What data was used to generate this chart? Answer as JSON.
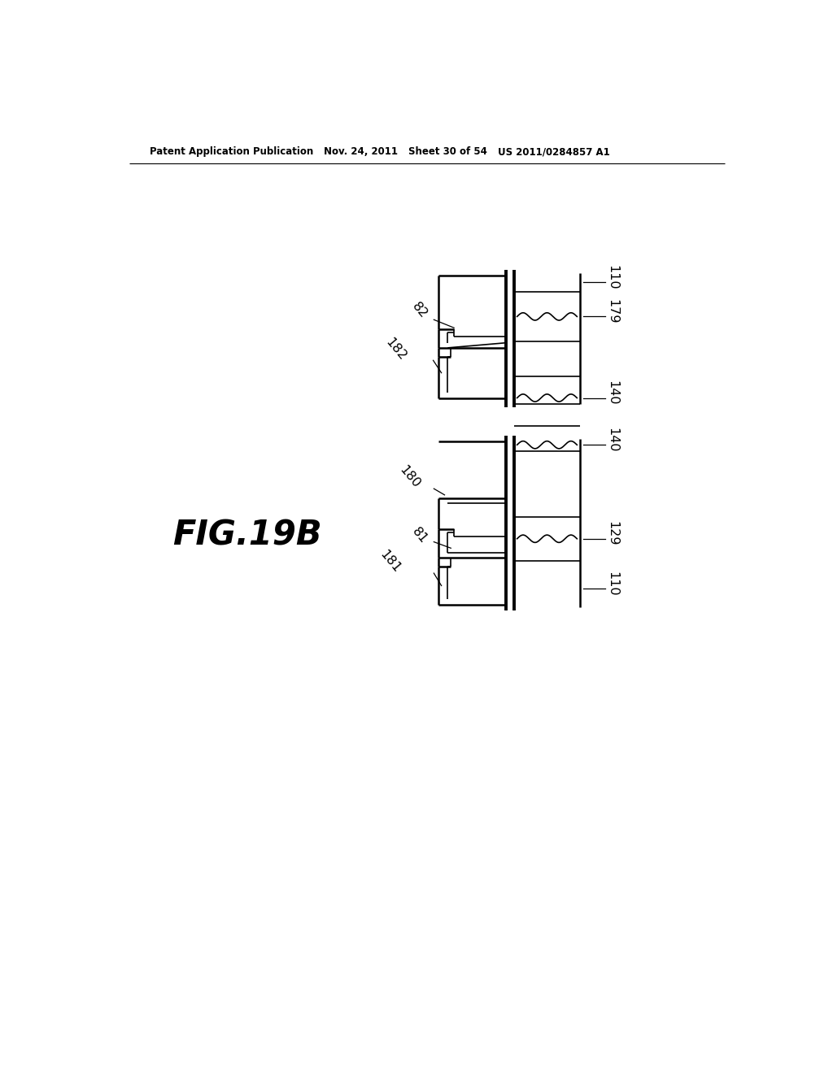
{
  "bg_color": "#ffffff",
  "line_color": "#000000",
  "header_text": "Patent Application Publication",
  "header_date": "Nov. 24, 2011",
  "header_sheet": "Sheet 30 of 54",
  "header_patent": "US 2011/0284857 A1",
  "fig_label": "FIG.19B"
}
